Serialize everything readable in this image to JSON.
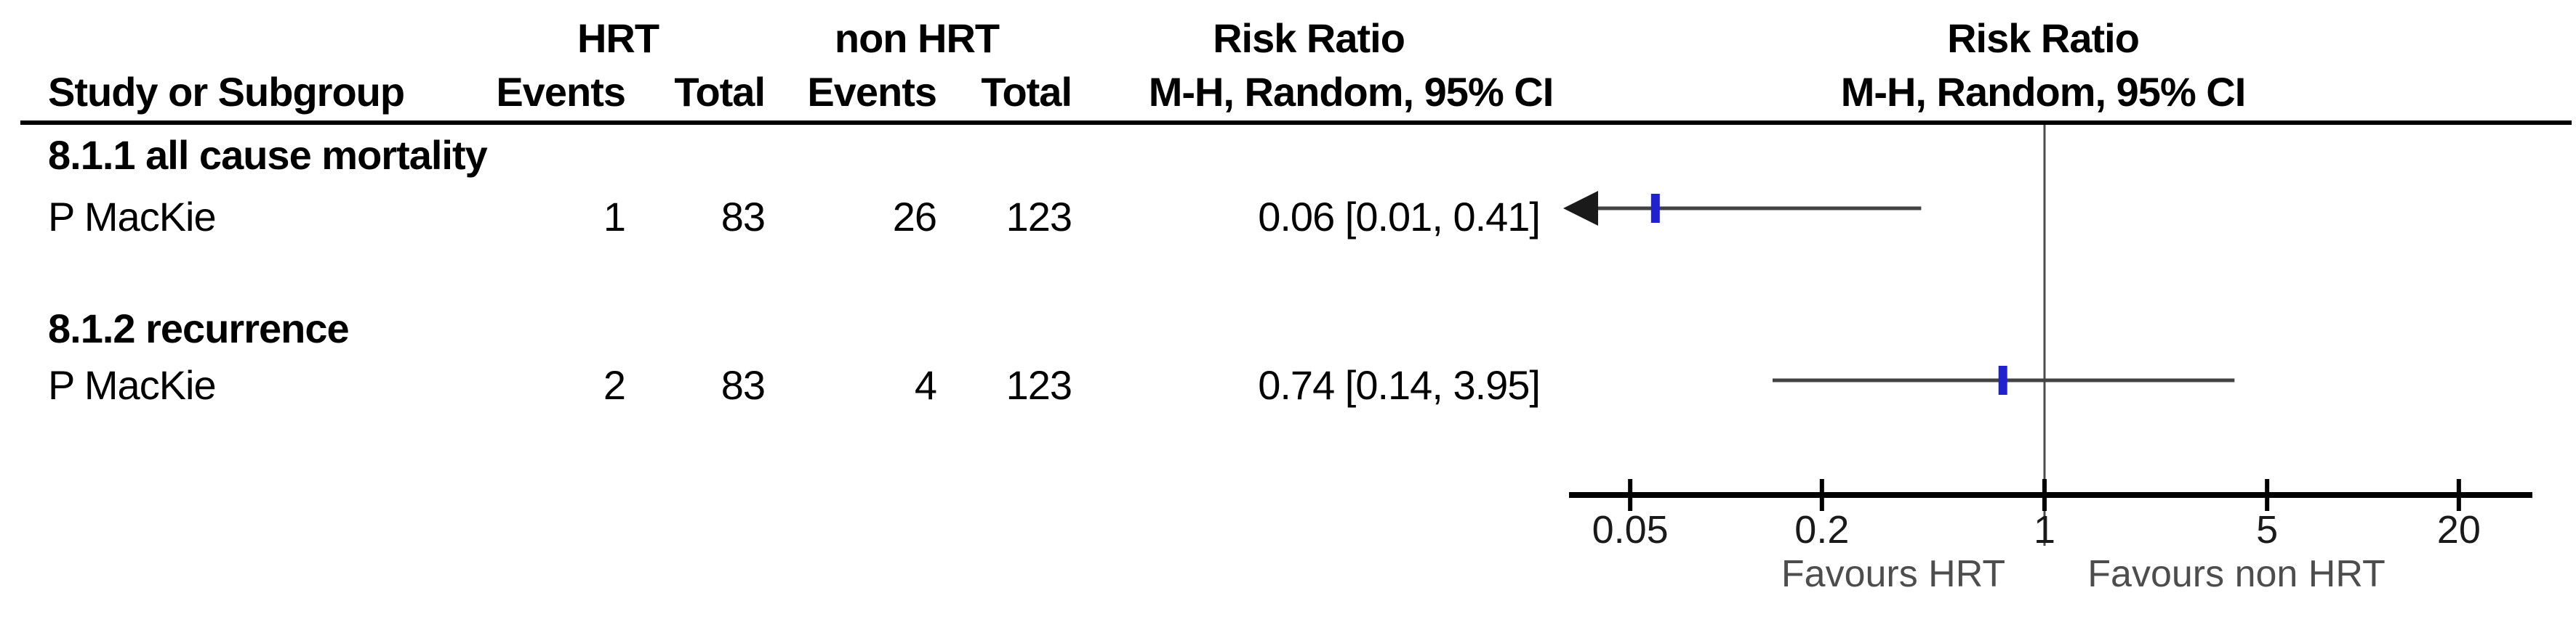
{
  "figure": {
    "background": "#ffffff",
    "header": {
      "study_col": "Study or Subgroup",
      "group1_name": "HRT",
      "group1_events": "Events",
      "group1_total": "Total",
      "group2_name": "non HRT",
      "group2_events": "Events",
      "group2_total": "Total",
      "effect_title": "Risk Ratio",
      "effect_subtitle": "M-H, Random, 95% CI",
      "plot_title": "Risk Ratio",
      "plot_subtitle": "M-H, Random, 95% CI"
    }
  },
  "chart_data": {
    "type": "forest",
    "effect_measure": "Risk Ratio",
    "method_label": "M-H, Random, 95% CI",
    "x_scale": "log",
    "null_value": 1,
    "axis_ticks": [
      "0.05",
      "0.2",
      "1",
      "5",
      "20"
    ],
    "axis_range": [
      0.0316,
      33
    ],
    "favours_left": "Favours HRT",
    "favours_right": "Favours non HRT",
    "subgroups": [
      {
        "label": "8.1.1 all cause mortality",
        "studies": [
          {
            "name": "P MacKie",
            "hrt_events": "1",
            "hrt_total": "83",
            "nonhrt_events": "26",
            "nonhrt_total": "123",
            "effect_text": "0.06 [0.01, 0.41]",
            "rr": 0.06,
            "ci_low": 0.01,
            "ci_high": 0.41
          }
        ]
      },
      {
        "label": "8.1.2 recurrence",
        "studies": [
          {
            "name": "P MacKie",
            "hrt_events": "2",
            "hrt_total": "83",
            "nonhrt_events": "4",
            "nonhrt_total": "123",
            "effect_text": "0.74 [0.14, 3.95]",
            "rr": 0.74,
            "ci_low": 0.14,
            "ci_high": 3.95
          }
        ]
      }
    ],
    "colors": {
      "marker_blue": "#2121cd",
      "ci_line": "#424242",
      "axis_black": "#000000",
      "null_line_gray": "#4d4d4d",
      "text_black": "#000000",
      "favours_gray": "#4d4d4d"
    }
  }
}
